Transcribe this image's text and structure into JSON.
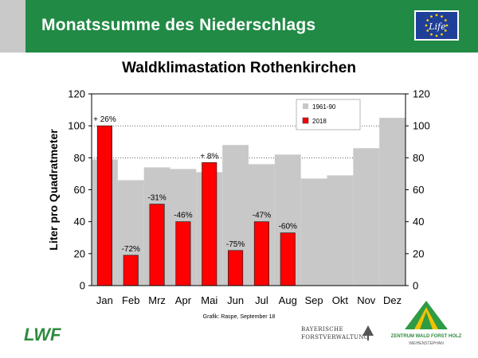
{
  "header": {
    "title": "Monatssumme des Niederschlags",
    "bg_color": "#218a45",
    "eu_logo_text": "Life"
  },
  "chart_data": {
    "type": "bar",
    "title": "Waldklimastation Rothenkirchen",
    "ylabel": "Liter pro Quadratmeter",
    "xlabel": "",
    "ylim": [
      0,
      120
    ],
    "yticks": [
      0,
      20,
      40,
      60,
      80,
      100,
      120
    ],
    "secondary_y_axis": true,
    "grid": "horizontal dotted",
    "legend_position": "top-right",
    "categories": [
      "Jan",
      "Feb",
      "Mrz",
      "Apr",
      "Mai",
      "Jun",
      "Jul",
      "Aug",
      "Sep",
      "Okt",
      "Nov",
      "Dez"
    ],
    "series": [
      {
        "name": "1961-90",
        "color": "#c8c8c8",
        "values": [
          79,
          66,
          74,
          73,
          71,
          88,
          76,
          82,
          67,
          69,
          86,
          105
        ]
      },
      {
        "name": "2018",
        "color": "#ff0000",
        "values": [
          100,
          19,
          51,
          40,
          77,
          22,
          40,
          33,
          null,
          null,
          null,
          null
        ]
      }
    ],
    "data_labels": [
      "+ 26%",
      "-72%",
      "-31%",
      "-46%",
      "+ 8%",
      "-75%",
      "-47%",
      "-60%",
      null,
      null,
      null,
      null
    ]
  },
  "credit": "Grafik: Raspe, September 18",
  "logos": {
    "lwf": "LWF",
    "bayern_line1": "BAYERISCHE",
    "bayern_line2": "FORSTVERWALTUNG",
    "zentrum_line1": "ZENTRUM WALD FORST HOLZ",
    "zentrum_line2": "WEIHENSTEPHAN"
  }
}
